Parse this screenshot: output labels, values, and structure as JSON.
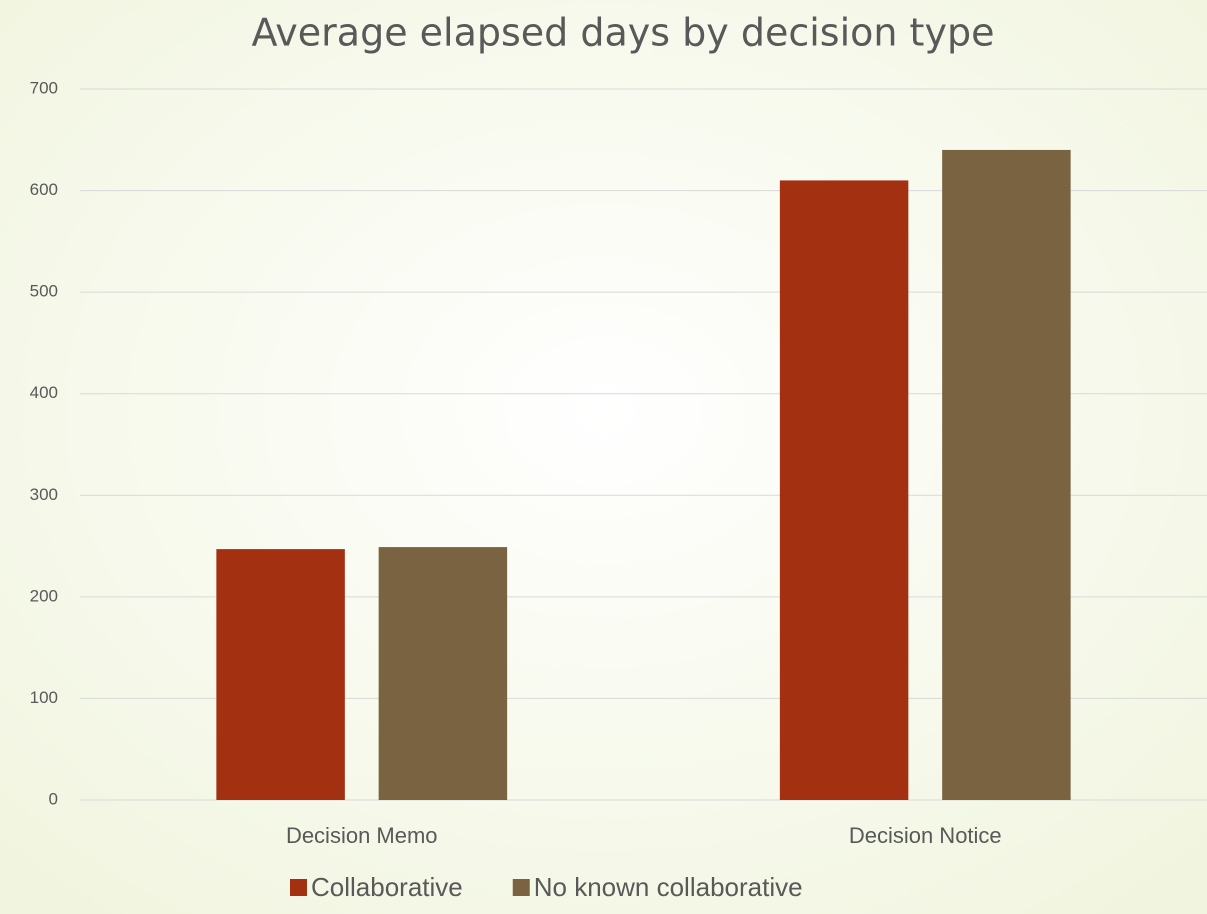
{
  "chart_data": {
    "type": "bar",
    "title": "Average elapsed days by decision type",
    "categories": [
      "Decision Memo",
      "Decision Notice"
    ],
    "series": [
      {
        "name": "Collaborative",
        "color": "#a33011",
        "values": [
          247,
          610
        ]
      },
      {
        "name": "No known collaborative",
        "color": "#7a6340",
        "values": [
          249,
          640
        ]
      }
    ],
    "ylim": [
      0,
      700
    ],
    "yticks": [
      0,
      100,
      200,
      300,
      400,
      500,
      600,
      700
    ],
    "grid": true,
    "legend": "bottom"
  }
}
